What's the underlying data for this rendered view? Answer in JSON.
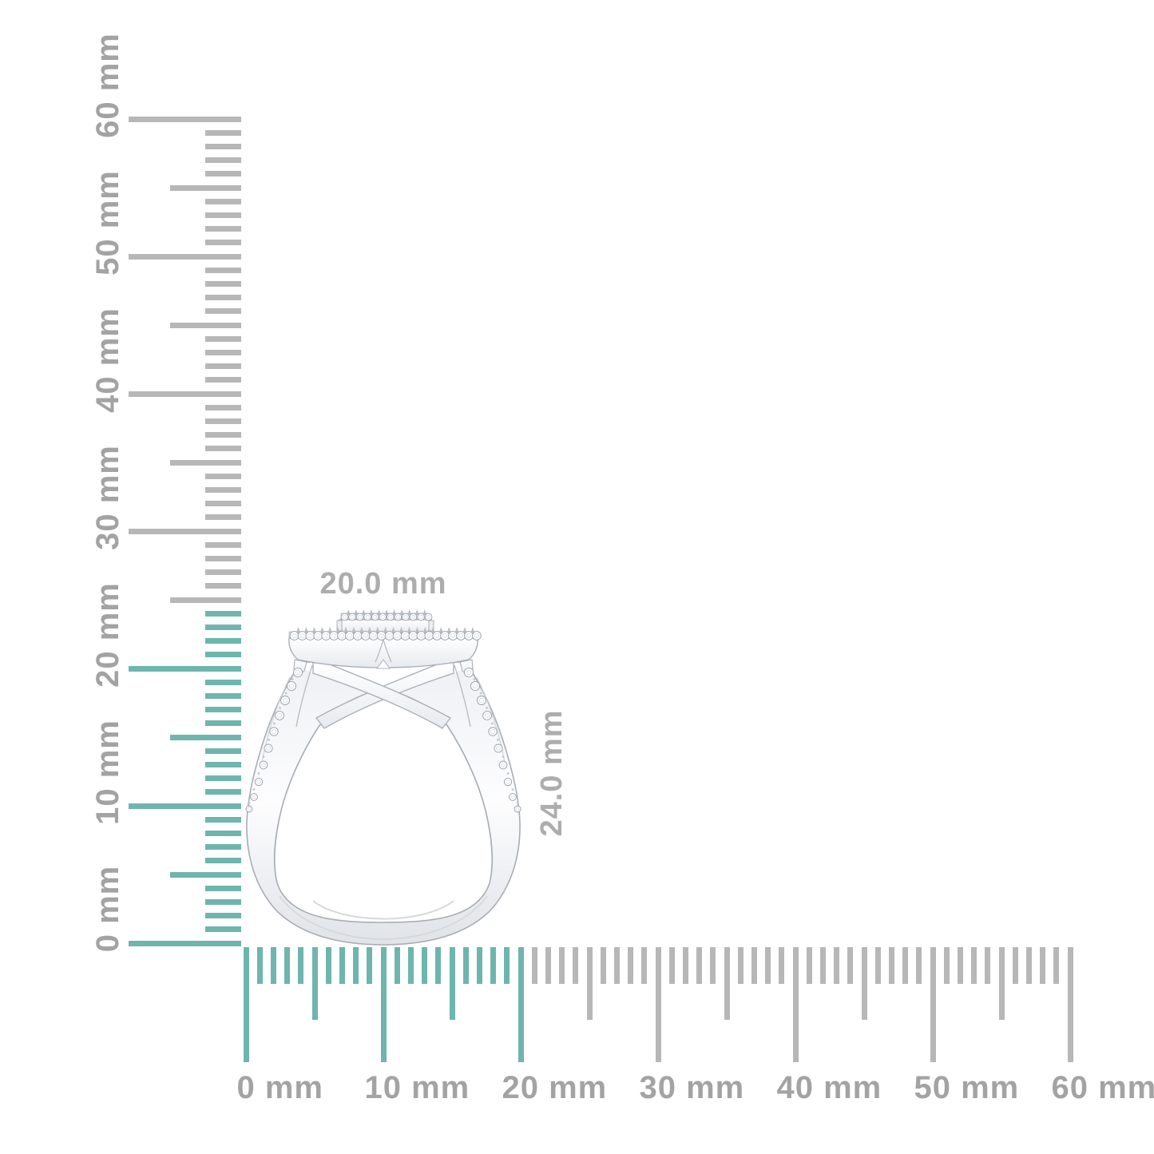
{
  "page": {
    "background": "#ffffff"
  },
  "dimensions": {
    "width_label": "20.0 mm",
    "height_label": "24.0 mm",
    "label_color": "#adadad"
  },
  "rulers": {
    "tick_gray": "#b7b7b7",
    "tick_teal": "#6eb5ae",
    "label_color": "#a3a3a3",
    "vertical": {
      "unit_labels": [
        "0 mm",
        "10 mm",
        "20 mm",
        "30 mm",
        "40 mm",
        "50 mm",
        "60 mm"
      ],
      "minor_step_mm": 1,
      "major_step_mm": 10,
      "max_mm": 60,
      "teal_up_to_mm": 24
    },
    "horizontal": {
      "unit_labels": [
        "0 mm",
        "10 mm",
        "20 mm",
        "30 mm",
        "40 mm",
        "50 mm",
        "60 mm"
      ],
      "minor_step_mm": 1,
      "major_step_mm": 10,
      "max_mm": 60,
      "teal_up_to_mm": 20
    }
  },
  "ring": {
    "metal_edge": "#a8adb4",
    "metal_light": "#ffffff",
    "metal_mid": "#f2f4f6",
    "metal_shade": "#dcdfe3",
    "diamond_stroke": "#989ea6",
    "diamond_fill": "#ffffff"
  }
}
